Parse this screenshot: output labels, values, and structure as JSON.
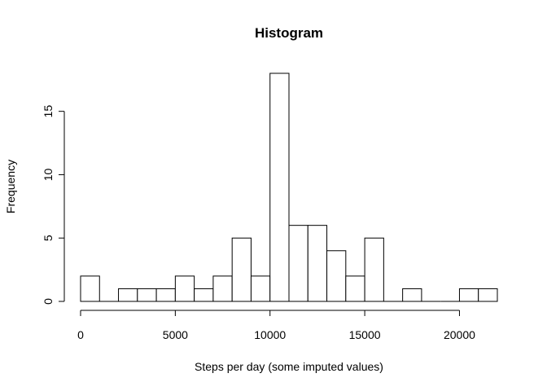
{
  "chart_data": {
    "type": "bar",
    "title": "Histogram",
    "xlabel": "Steps per day (some imputed values)",
    "ylabel": "Frequency",
    "bin_width": 1000,
    "bin_starts": [
      0,
      1000,
      2000,
      3000,
      4000,
      5000,
      6000,
      7000,
      8000,
      9000,
      10000,
      11000,
      12000,
      13000,
      14000,
      15000,
      16000,
      17000,
      18000,
      19000,
      20000,
      21000
    ],
    "values": [
      2,
      0,
      1,
      1,
      1,
      2,
      1,
      2,
      5,
      2,
      18,
      6,
      6,
      4,
      2,
      5,
      0,
      1,
      0,
      0,
      1,
      1
    ],
    "xlim": [
      0,
      22000
    ],
    "ylim": [
      0,
      18
    ],
    "xticks": [
      0,
      5000,
      10000,
      15000,
      20000
    ],
    "xtick_labels": [
      "0",
      "5000",
      "10000",
      "15000",
      "20000"
    ],
    "yticks": [
      0,
      5,
      10,
      15
    ],
    "ytick_labels": [
      "0",
      "5",
      "10",
      "15"
    ],
    "grid": false,
    "legend": "none",
    "bar_fill": "#ffffff",
    "bar_stroke": "#000000"
  }
}
